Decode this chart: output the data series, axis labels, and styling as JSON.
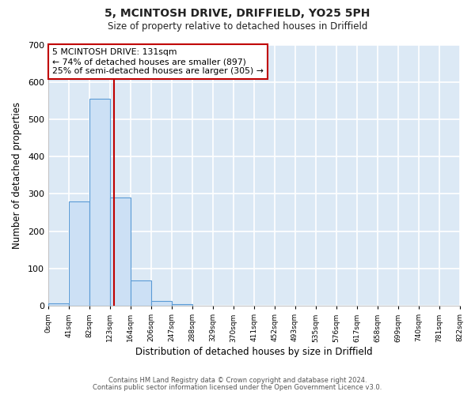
{
  "title1": "5, MCINTOSH DRIVE, DRIFFIELD, YO25 5PH",
  "title2": "Size of property relative to detached houses in Driffield",
  "xlabel": "Distribution of detached houses by size in Driffield",
  "ylabel": "Number of detached properties",
  "bin_edges": [
    0,
    41,
    82,
    123,
    164,
    206,
    247,
    288,
    329,
    370,
    411,
    452,
    493,
    535,
    576,
    617,
    658,
    699,
    740,
    781,
    822
  ],
  "bar_heights": [
    7,
    279,
    556,
    291,
    68,
    14,
    5,
    0,
    0,
    0,
    0,
    0,
    0,
    0,
    0,
    0,
    0,
    0,
    0,
    0
  ],
  "bar_color": "#cce0f5",
  "bar_edge_color": "#5b9bd5",
  "tick_labels": [
    "0sqm",
    "41sqm",
    "82sqm",
    "123sqm",
    "164sqm",
    "206sqm",
    "247sqm",
    "288sqm",
    "329sqm",
    "370sqm",
    "411sqm",
    "452sqm",
    "493sqm",
    "535sqm",
    "576sqm",
    "617sqm",
    "658sqm",
    "699sqm",
    "740sqm",
    "781sqm",
    "822sqm"
  ],
  "ylim": [
    0,
    700
  ],
  "yticks": [
    0,
    100,
    200,
    300,
    400,
    500,
    600,
    700
  ],
  "vline_x": 131,
  "vline_color": "#c00000",
  "annotation_lines": [
    "5 MCINTOSH DRIVE: 131sqm",
    "← 74% of detached houses are smaller (897)",
    "25% of semi-detached houses are larger (305) →"
  ],
  "annotation_box_color": "#c00000",
  "plot_bg_color": "#dce9f5",
  "fig_bg_color": "#ffffff",
  "grid_color": "#ffffff",
  "footer1": "Contains HM Land Registry data © Crown copyright and database right 2024.",
  "footer2": "Contains public sector information licensed under the Open Government Licence v3.0."
}
